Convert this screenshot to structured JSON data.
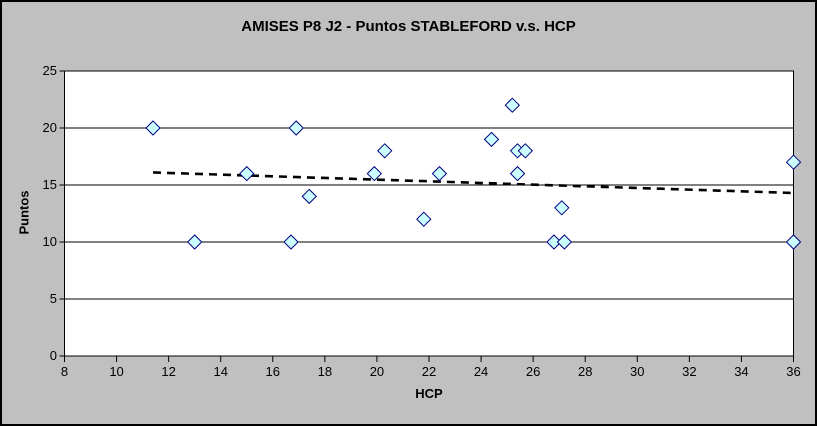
{
  "window": {
    "background_color": "#C0C0C0",
    "border_color": "#000000",
    "plot_background_color": "#FFFFFF"
  },
  "chart_data": {
    "type": "scatter",
    "title": "AMISES P8 J2 - Puntos STABLEFORD v.s. HCP",
    "xlabel": "HCP",
    "ylabel": "Puntos",
    "xlim": [
      8,
      36
    ],
    "ylim": [
      0,
      25
    ],
    "x_ticks": [
      8,
      10,
      12,
      14,
      16,
      18,
      20,
      22,
      24,
      26,
      28,
      30,
      32,
      34,
      36
    ],
    "y_ticks": [
      0,
      5,
      10,
      15,
      20,
      25
    ],
    "grid": "horizontal-only",
    "legend": "none",
    "points": [
      [
        11.4,
        20
      ],
      [
        13.0,
        10
      ],
      [
        15.0,
        16
      ],
      [
        16.7,
        10
      ],
      [
        16.9,
        20
      ],
      [
        17.4,
        14
      ],
      [
        19.9,
        16
      ],
      [
        20.3,
        18
      ],
      [
        21.8,
        12
      ],
      [
        22.4,
        16
      ],
      [
        24.4,
        19
      ],
      [
        25.2,
        22
      ],
      [
        25.4,
        16
      ],
      [
        25.4,
        18
      ],
      [
        25.7,
        18
      ],
      [
        26.8,
        10
      ],
      [
        27.1,
        13
      ],
      [
        27.2,
        10
      ],
      [
        36.0,
        10
      ],
      [
        36.0,
        17
      ]
    ],
    "trendline": {
      "style": "dashed",
      "color": "#000000",
      "x1": 11.4,
      "y1": 16.1,
      "x2": 36.0,
      "y2": 14.3
    },
    "marker": {
      "shape": "diamond",
      "fill": "#CCFFFF",
      "stroke": "#000080",
      "size": 14
    }
  }
}
